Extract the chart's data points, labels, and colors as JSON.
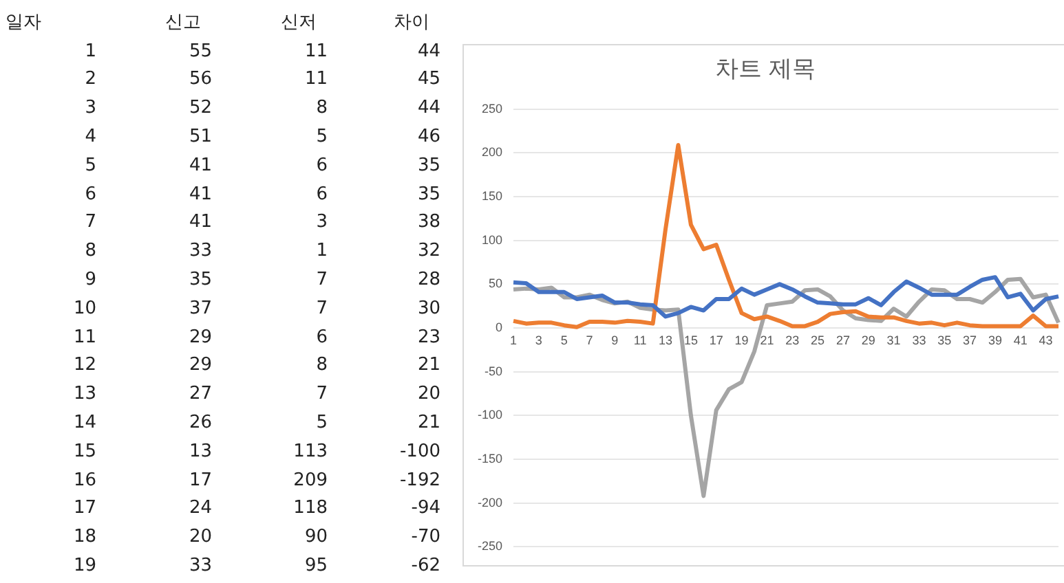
{
  "chart_data": [
    {
      "type": "heatmap",
      "ylabel": "일자",
      "data_labels": true,
      "categories": [
        "신고",
        "신저",
        "차이"
      ],
      "y_categories": [
        "1",
        "2",
        "3",
        "4",
        "5",
        "6",
        "7",
        "8",
        "9",
        "10",
        "11",
        "12",
        "13",
        "14",
        "15",
        "16",
        "17",
        "18",
        "19"
      ],
      "cells": [
        [
          55,
          11,
          44
        ],
        [
          56,
          11,
          45
        ],
        [
          52,
          8,
          44
        ],
        [
          51,
          5,
          46
        ],
        [
          41,
          6,
          35
        ],
        [
          41,
          6,
          35
        ],
        [
          41,
          3,
          38
        ],
        [
          33,
          1,
          32
        ],
        [
          35,
          7,
          28
        ],
        [
          37,
          7,
          30
        ],
        [
          29,
          6,
          23
        ],
        [
          29,
          8,
          21
        ],
        [
          27,
          7,
          20
        ],
        [
          26,
          5,
          21
        ],
        [
          13,
          113,
          -100
        ],
        [
          17,
          209,
          -192
        ],
        [
          24,
          118,
          -94
        ],
        [
          20,
          90,
          -70
        ],
        [
          33,
          95,
          -62
        ]
      ]
    },
    {
      "type": "line",
      "title": "차트 제목",
      "categories": [
        "1",
        null,
        "3",
        null,
        "5",
        null,
        "7",
        null,
        "9",
        null,
        "11",
        null,
        "13",
        null,
        "15",
        null,
        "17",
        null,
        "19",
        null,
        "21",
        null,
        "23",
        null,
        "25",
        null,
        "27",
        null,
        "29",
        null,
        "31",
        null,
        "33",
        null,
        "35",
        null,
        "37",
        null,
        "39",
        null,
        "41",
        null,
        "43",
        null
      ],
      "series": [
        {
          "color": "#4472c4",
          "values": [
            52,
            51,
            41,
            41,
            41,
            33,
            35,
            37,
            29,
            29,
            27,
            26,
            13,
            17,
            24,
            20,
            33,
            33,
            45,
            38,
            44,
            50,
            44,
            36,
            29,
            28,
            27,
            27,
            34,
            26,
            41,
            53,
            46,
            38,
            38,
            38,
            47,
            55,
            58,
            35,
            39,
            20,
            33,
            36
          ]
        },
        {
          "color": "#ed7d31",
          "values": [
            8,
            5,
            6,
            6,
            3,
            1,
            7,
            7,
            6,
            8,
            7,
            5,
            113,
            209,
            118,
            90,
            95,
            55,
            17,
            10,
            13,
            8,
            2,
            2,
            7,
            16,
            18,
            19,
            13,
            12,
            12,
            8,
            5,
            6,
            3,
            6,
            3,
            2,
            2,
            2,
            2,
            14,
            2,
            2
          ]
        },
        {
          "color": "#a5a5a5",
          "values": [
            44,
            45,
            44,
            46,
            35,
            35,
            38,
            32,
            28,
            30,
            23,
            21,
            20,
            21,
            -100,
            -192,
            -94,
            -70,
            -62,
            -27,
            26,
            28,
            30,
            43,
            44,
            36,
            20,
            11,
            9,
            8,
            22,
            13,
            30,
            44,
            43,
            33,
            33,
            29,
            41,
            55,
            56,
            35,
            38,
            6
          ]
        }
      ],
      "ylim": [
        -250,
        250
      ],
      "yticks": [
        -250,
        -200,
        -150,
        -100,
        -50,
        0,
        50,
        100,
        150,
        200,
        250
      ],
      "grid": "y"
    }
  ]
}
